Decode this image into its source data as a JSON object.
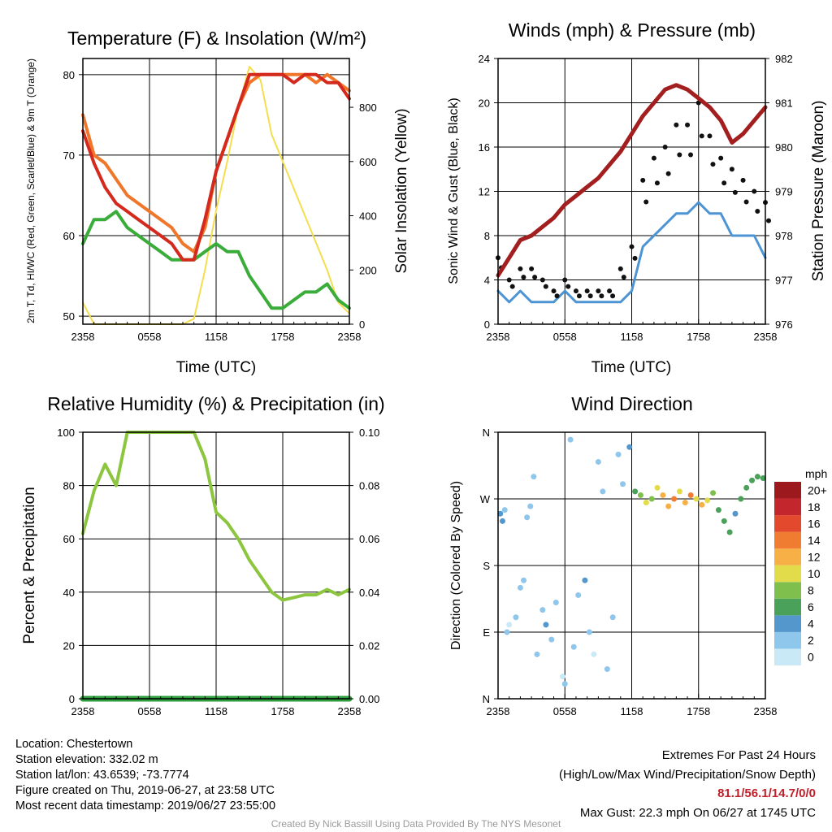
{
  "chart_data": [
    {
      "type": "line",
      "title": "Temperature (F) & Insolation (W/m²)",
      "xlabel": "Time (UTC)",
      "ylabel": "2m T, Td, HI/WC (Red, Green, Scarlet/Blue) & 9m T (Orange)",
      "y2label": "Solar Insolation (Yellow)",
      "x_ticks": [
        "2358",
        "0558",
        "1158",
        "1758",
        "2358"
      ],
      "y_ticks": [
        "50",
        "60",
        "70",
        "80"
      ],
      "y2_ticks": [
        "0",
        "200",
        "400",
        "600",
        "800"
      ],
      "ylim": [
        49,
        82
      ],
      "y2lim": [
        0,
        980
      ],
      "grid": true,
      "series": [
        {
          "name": "2m T",
          "color": "#d42a1e",
          "axis": "left",
          "x": [
            0,
            1,
            2,
            3,
            4,
            5,
            6,
            7,
            8,
            9,
            10,
            11,
            12,
            13,
            14,
            15,
            16,
            17,
            18,
            19,
            20,
            21,
            22,
            23,
            24
          ],
          "values": [
            73,
            69,
            66,
            64,
            63,
            62,
            61,
            60,
            59,
            57,
            57,
            62,
            68,
            72,
            76,
            80,
            80,
            80,
            80,
            79,
            80,
            80,
            79,
            79,
            77
          ]
        },
        {
          "name": "9m T",
          "color": "#f0762a",
          "axis": "left",
          "x": [
            0,
            1,
            2,
            3,
            4,
            5,
            6,
            7,
            8,
            9,
            10,
            11,
            12,
            13,
            14,
            15,
            16,
            17,
            18,
            19,
            20,
            21,
            22,
            23,
            24
          ],
          "values": [
            75,
            70,
            69,
            67,
            65,
            64,
            63,
            62,
            61,
            59,
            58,
            61,
            68,
            72,
            76,
            79,
            80,
            80,
            80,
            80,
            80,
            79,
            80,
            79,
            78
          ]
        },
        {
          "name": "Td",
          "color": "#3aac3a",
          "axis": "left",
          "x": [
            0,
            1,
            2,
            3,
            4,
            5,
            6,
            7,
            8,
            9,
            10,
            11,
            12,
            13,
            14,
            15,
            16,
            17,
            18,
            19,
            20,
            21,
            22,
            23,
            24
          ],
          "values": [
            59,
            62,
            62,
            63,
            61,
            60,
            59,
            58,
            57,
            57,
            57,
            58,
            59,
            58,
            58,
            55,
            53,
            51,
            51,
            52,
            53,
            53,
            54,
            52,
            51
          ]
        },
        {
          "name": "Solar Insolation",
          "color": "#f4de4e",
          "axis": "right",
          "x": [
            0,
            1,
            2,
            3,
            4,
            5,
            6,
            7,
            8,
            9,
            10,
            11,
            12,
            13,
            14,
            15,
            16,
            17,
            18,
            19,
            20,
            21,
            22,
            23,
            24
          ],
          "values": [
            80,
            0,
            0,
            0,
            0,
            0,
            0,
            0,
            0,
            0,
            20,
            200,
            420,
            600,
            800,
            950,
            900,
            700,
            600,
            500,
            400,
            300,
            200,
            80,
            40
          ]
        }
      ]
    },
    {
      "type": "scatter",
      "title": "Winds (mph) & Pressure (mb)",
      "xlabel": "Time (UTC)",
      "ylabel": "Sonic Wind & Gust (Blue, Black)",
      "y2label": "Station Pressure (Maroon)",
      "x_ticks": [
        "2358",
        "0558",
        "1158",
        "1758",
        "2358"
      ],
      "y_ticks": [
        "0",
        "4",
        "8",
        "12",
        "16",
        "20",
        "24"
      ],
      "y2_ticks": [
        "976",
        "977",
        "978",
        "979",
        "980",
        "981",
        "982"
      ],
      "ylim": [
        0,
        24
      ],
      "y2lim": [
        976,
        982
      ],
      "grid": true,
      "series": [
        {
          "name": "Sonic Wind",
          "color": "#4c94d4",
          "axis": "left",
          "x": [
            0,
            1,
            2,
            3,
            4,
            5,
            6,
            7,
            8,
            9,
            10,
            11,
            12,
            13,
            14,
            15,
            16,
            17,
            18,
            19,
            20,
            21,
            22,
            23,
            24
          ],
          "values": [
            3,
            2,
            3,
            2,
            2,
            2,
            3,
            2,
            2,
            2,
            2,
            2,
            3,
            7,
            8,
            9,
            10,
            10,
            11,
            10,
            10,
            8,
            8,
            8,
            6
          ]
        },
        {
          "name": "Gust",
          "color": "#111111",
          "axis": "left",
          "x": [
            0,
            1,
            2,
            3,
            4,
            5,
            6,
            7,
            8,
            9,
            10,
            11,
            12,
            13,
            14,
            15,
            16,
            17,
            18,
            19,
            20,
            21,
            22,
            23,
            24
          ],
          "values": [
            6,
            4,
            5,
            5,
            4,
            3,
            4,
            3,
            3,
            3,
            3,
            5,
            7,
            13,
            15,
            16,
            18,
            18,
            20,
            17,
            15,
            14,
            13,
            12,
            11
          ]
        },
        {
          "name": "Station Pressure",
          "color": "#a31e1e",
          "axis": "right",
          "x": [
            0,
            1,
            2,
            3,
            4,
            5,
            6,
            7,
            8,
            9,
            10,
            11,
            12,
            13,
            14,
            15,
            16,
            17,
            18,
            19,
            20,
            21,
            22,
            23,
            24
          ],
          "values": [
            977.1,
            977.5,
            977.9,
            978.0,
            978.2,
            978.4,
            978.7,
            978.9,
            979.1,
            979.3,
            979.6,
            979.9,
            980.3,
            980.7,
            981.0,
            981.3,
            981.4,
            981.3,
            981.1,
            980.9,
            980.6,
            980.1,
            980.3,
            980.6,
            980.9
          ]
        }
      ]
    },
    {
      "type": "line",
      "title": "Relative Humidity (%) & Precipitation (in)",
      "ylabel": "Percent & Precipitation",
      "x_ticks": [
        "2358",
        "0558",
        "1158",
        "1758",
        "2358"
      ],
      "y_ticks": [
        "0",
        "20",
        "40",
        "60",
        "80",
        "100"
      ],
      "y2_ticks": [
        "0.00",
        "0.02",
        "0.04",
        "0.06",
        "0.08",
        "0.10"
      ],
      "ylim": [
        0,
        100
      ],
      "y2lim": [
        0,
        0.1
      ],
      "grid": true,
      "series": [
        {
          "name": "Relative Humidity",
          "color": "#8cc63f",
          "axis": "left",
          "x": [
            0,
            1,
            2,
            3,
            4,
            5,
            6,
            7,
            8,
            9,
            10,
            11,
            12,
            13,
            14,
            15,
            16,
            17,
            18,
            19,
            20,
            21,
            22,
            23,
            24
          ],
          "values": [
            62,
            78,
            88,
            80,
            100,
            100,
            100,
            100,
            100,
            100,
            100,
            90,
            70,
            66,
            60,
            52,
            46,
            40,
            37,
            38,
            39,
            39,
            41,
            39,
            41
          ]
        },
        {
          "name": "Precipitation",
          "color": "#2e9e3e",
          "axis": "right",
          "x": [
            0,
            24
          ],
          "values": [
            0,
            0
          ]
        }
      ]
    },
    {
      "type": "scatter",
      "title": "Wind Direction",
      "ylabel": "Direction (Colored By Speed)",
      "x_ticks": [
        "2358",
        "0558",
        "1158",
        "1758",
        "2358"
      ],
      "y_ticks": [
        "N",
        "E",
        "S",
        "W",
        "N"
      ],
      "ylim": [
        0,
        360
      ],
      "grid": true,
      "legend_title": "mph",
      "legend_position": "right",
      "colorbar_labels": [
        "0",
        "2",
        "4",
        "6",
        "8",
        "10",
        "12",
        "14",
        "16",
        "18",
        "20+"
      ],
      "colorbar_colors": [
        "#c9e9f7",
        "#8ec6ec",
        "#5497cd",
        "#49a15a",
        "#7fbf4d",
        "#e2dc4a",
        "#f6b046",
        "#ef7c31",
        "#e2492d",
        "#c3262c",
        "#9c1a1e"
      ],
      "points": [
        {
          "x": 0.2,
          "deg": 250,
          "mph": 4
        },
        {
          "x": 0.4,
          "deg": 240,
          "mph": 4
        },
        {
          "x": 0.6,
          "deg": 255,
          "mph": 3
        },
        {
          "x": 0.8,
          "deg": 90,
          "mph": 2
        },
        {
          "x": 1.0,
          "deg": 100,
          "mph": 1
        },
        {
          "x": 1.6,
          "deg": 110,
          "mph": 3
        },
        {
          "x": 2.0,
          "deg": 150,
          "mph": 2
        },
        {
          "x": 2.3,
          "deg": 160,
          "mph": 3
        },
        {
          "x": 2.6,
          "deg": 245,
          "mph": 3
        },
        {
          "x": 2.9,
          "deg": 260,
          "mph": 2
        },
        {
          "x": 3.2,
          "deg": 300,
          "mph": 3
        },
        {
          "x": 3.5,
          "deg": 60,
          "mph": 2
        },
        {
          "x": 4.0,
          "deg": 120,
          "mph": 3
        },
        {
          "x": 4.3,
          "deg": 100,
          "mph": 4
        },
        {
          "x": 4.8,
          "deg": 80,
          "mph": 2
        },
        {
          "x": 5.2,
          "deg": 130,
          "mph": 3
        },
        {
          "x": 5.8,
          "deg": 30,
          "mph": 1
        },
        {
          "x": 6.0,
          "deg": 20,
          "mph": 2
        },
        {
          "x": 6.5,
          "deg": 350,
          "mph": 2
        },
        {
          "x": 6.8,
          "deg": 70,
          "mph": 3
        },
        {
          "x": 7.2,
          "deg": 140,
          "mph": 2
        },
        {
          "x": 7.8,
          "deg": 160,
          "mph": 4
        },
        {
          "x": 8.2,
          "deg": 90,
          "mph": 3
        },
        {
          "x": 8.6,
          "deg": 60,
          "mph": 1
        },
        {
          "x": 9.0,
          "deg": 320,
          "mph": 2
        },
        {
          "x": 9.4,
          "deg": 280,
          "mph": 3
        },
        {
          "x": 9.8,
          "deg": 40,
          "mph": 2
        },
        {
          "x": 10.3,
          "deg": 110,
          "mph": 3
        },
        {
          "x": 10.8,
          "deg": 330,
          "mph": 3
        },
        {
          "x": 11.2,
          "deg": 290,
          "mph": 2
        },
        {
          "x": 11.8,
          "deg": 340,
          "mph": 4
        },
        {
          "x": 12.3,
          "deg": 280,
          "mph": 7
        },
        {
          "x": 12.8,
          "deg": 275,
          "mph": 9
        },
        {
          "x": 13.3,
          "deg": 265,
          "mph": 11
        },
        {
          "x": 13.8,
          "deg": 270,
          "mph": 8
        },
        {
          "x": 14.3,
          "deg": 285,
          "mph": 10
        },
        {
          "x": 14.8,
          "deg": 275,
          "mph": 12
        },
        {
          "x": 15.3,
          "deg": 260,
          "mph": 13
        },
        {
          "x": 15.8,
          "deg": 270,
          "mph": 14
        },
        {
          "x": 16.3,
          "deg": 280,
          "mph": 11
        },
        {
          "x": 16.8,
          "deg": 265,
          "mph": 12
        },
        {
          "x": 17.3,
          "deg": 275,
          "mph": 14
        },
        {
          "x": 17.8,
          "deg": 270,
          "mph": 10
        },
        {
          "x": 18.3,
          "deg": 262,
          "mph": 13
        },
        {
          "x": 18.8,
          "deg": 268,
          "mph": 11
        },
        {
          "x": 19.3,
          "deg": 278,
          "mph": 9
        },
        {
          "x": 19.8,
          "deg": 255,
          "mph": 6
        },
        {
          "x": 20.3,
          "deg": 240,
          "mph": 7
        },
        {
          "x": 20.8,
          "deg": 225,
          "mph": 6
        },
        {
          "x": 21.3,
          "deg": 250,
          "mph": 5
        },
        {
          "x": 21.8,
          "deg": 270,
          "mph": 7
        },
        {
          "x": 22.3,
          "deg": 285,
          "mph": 6
        },
        {
          "x": 22.8,
          "deg": 295,
          "mph": 7
        },
        {
          "x": 23.3,
          "deg": 300,
          "mph": 6
        },
        {
          "x": 23.8,
          "deg": 298,
          "mph": 6
        }
      ]
    }
  ],
  "footer": {
    "location": "Location: Chestertown",
    "elevation": "Station elevation: 332.02 m",
    "latlon": "Station lat/lon: 43.6539; -73.7774",
    "created": "Figure created on Thu, 2019-06-27, at 23:58 UTC",
    "recent": "Most recent data timestamp: 2019/06/27 23:55:00",
    "extremes_title": "Extremes For Past 24 Hours",
    "extremes_sub": "(High/Low/Max Wind/Precipitation/Snow Depth)",
    "extremes_values": "81.1/56.1/14.7/0/0",
    "max_gust": "Max Gust: 22.3 mph On 06/27 at 1745 UTC",
    "credit": "Created By Nick Bassill Using Data Provided By The NYS Mesonet"
  },
  "colors": {
    "extremes": "#c0202a",
    "credit": "#9a9a9a"
  }
}
